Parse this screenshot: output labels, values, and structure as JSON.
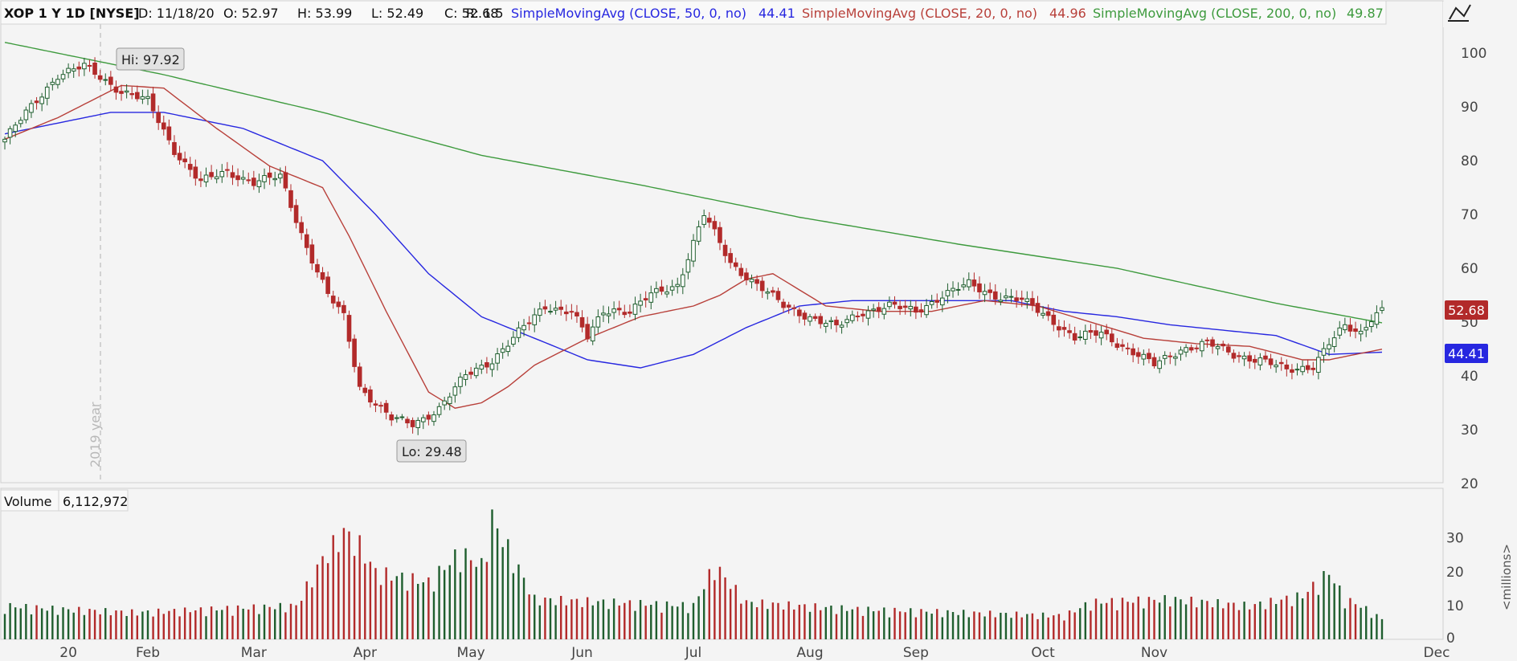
{
  "header": {
    "symbol": "XOP 1 Y 1D [NYSE]",
    "date": "D: 11/18/20",
    "open": "O: 52.97",
    "high": "H: 53.99",
    "low": "L: 52.49",
    "close": "C: 52.68",
    "range": "R: 1.5",
    "sma50_label": "SimpleMovingAvg (CLOSE, 50, 0, no)",
    "sma50_value": "44.41",
    "sma20_label": "SimpleMovingAvg (CLOSE, 20, 0, no)",
    "sma20_value": "44.96",
    "sma200_label": "SimpleMovingAvg (CLOSE, 200, 0, no)",
    "sma200_value": "49.87"
  },
  "annotations": {
    "high_label": "Hi: 97.92",
    "low_label": "Lo: 29.48",
    "year_marker": "2019 year",
    "last_price": "52.68",
    "sma50_price": "44.41"
  },
  "volume_panel": {
    "label": "Volume",
    "value": "6,112,972",
    "unit_label": "<millions>"
  },
  "colors": {
    "up": "#1f5e2e",
    "down": "#b22a2a",
    "sma50": "#2727e0",
    "sma20": "#b8403a",
    "sma200": "#3d9a3d",
    "background": "#f4f4f4"
  },
  "chart_data": {
    "type": "candlestick",
    "x_axis_ticks": [
      "20",
      "Feb",
      "Mar",
      "Apr",
      "May",
      "Jun",
      "Jul",
      "Aug",
      "Sep",
      "Oct",
      "Nov",
      "Dec"
    ],
    "price_ticks": [
      "100",
      "90",
      "80",
      "70",
      "60",
      "50",
      "40",
      "30",
      "20"
    ],
    "volume_ticks": [
      "30",
      "20",
      "10",
      "0"
    ],
    "price_ylim": [
      20,
      106
    ],
    "volume_ylim": [
      0,
      38
    ],
    "price_checkpoints": {
      "days": [
        0,
        5,
        10,
        15,
        22,
        27,
        32,
        37,
        42,
        47,
        52,
        57,
        61,
        64,
        67,
        70,
        73,
        77,
        82,
        87,
        92,
        97,
        102,
        107,
        110,
        113,
        115,
        118,
        122,
        127,
        132,
        137,
        142,
        147,
        152,
        157,
        162,
        167,
        172,
        177,
        182,
        187,
        192,
        197,
        202,
        207,
        212,
        217,
        222,
        227,
        232,
        237,
        242,
        247,
        250,
        253,
        256,
        258,
        260
      ],
      "closes": [
        84,
        90,
        96,
        97.5,
        93,
        91,
        82,
        76,
        78,
        76,
        77,
        64,
        55,
        51,
        38,
        35,
        32,
        31,
        34,
        40,
        43,
        48,
        53,
        52,
        47,
        52,
        52.5,
        52,
        55,
        57,
        70,
        61,
        57,
        53,
        51,
        49,
        52,
        53,
        52,
        55,
        57,
        55,
        54,
        51,
        47,
        48,
        45,
        42,
        45,
        46,
        44,
        43,
        41,
        42,
        46,
        49,
        48,
        51,
        52.68
      ]
    },
    "volume_checkpoints": {
      "days": [
        0,
        10,
        25,
        40,
        55,
        60,
        64,
        67,
        70,
        80,
        86,
        90,
        92,
        100,
        115,
        130,
        134,
        140,
        160,
        180,
        200,
        205,
        220,
        235,
        245,
        250,
        253,
        256,
        260
      ],
      "values": [
        10,
        9,
        8,
        9,
        10,
        24,
        32,
        28,
        20,
        17,
        26,
        22,
        36,
        12,
        11,
        10,
        22,
        11,
        9,
        8,
        7,
        11,
        12,
        10,
        13,
        20,
        12,
        10,
        6
      ]
    },
    "sma50_checkpoints": {
      "days": [
        0,
        10,
        20,
        30,
        45,
        60,
        70,
        80,
        90,
        100,
        110,
        120,
        130,
        140,
        150,
        160,
        170,
        180,
        190,
        200,
        210,
        220,
        230,
        240,
        250,
        260
      ],
      "values": [
        85,
        87,
        89,
        89,
        86,
        80,
        70,
        59,
        51,
        47,
        43,
        41.5,
        44,
        49,
        53,
        54,
        54,
        54,
        54,
        52,
        51,
        49.5,
        48.5,
        47.5,
        44,
        44.41
      ]
    },
    "sma20_checkpoints": {
      "days": [
        0,
        10,
        22,
        30,
        40,
        50,
        55,
        60,
        65,
        72,
        80,
        85,
        90,
        95,
        100,
        110,
        120,
        125,
        130,
        135,
        140,
        145,
        155,
        165,
        175,
        185,
        195,
        205,
        215,
        225,
        235,
        245,
        250,
        255,
        260
      ],
      "values": [
        84,
        88,
        94,
        93.5,
        86,
        79,
        77,
        75,
        66,
        52,
        37,
        34,
        35,
        38,
        42,
        47,
        51,
        52,
        53,
        55,
        58,
        59,
        53,
        52,
        52,
        54,
        53,
        50,
        47,
        46,
        45.5,
        43,
        43,
        44,
        44.96
      ]
    },
    "sma200_checkpoints": {
      "days": [
        0,
        30,
        60,
        90,
        120,
        150,
        180,
        210,
        240,
        260
      ],
      "values": [
        102,
        96,
        89,
        81,
        75.5,
        69.5,
        64.5,
        60,
        53.5,
        49.87
      ]
    }
  }
}
